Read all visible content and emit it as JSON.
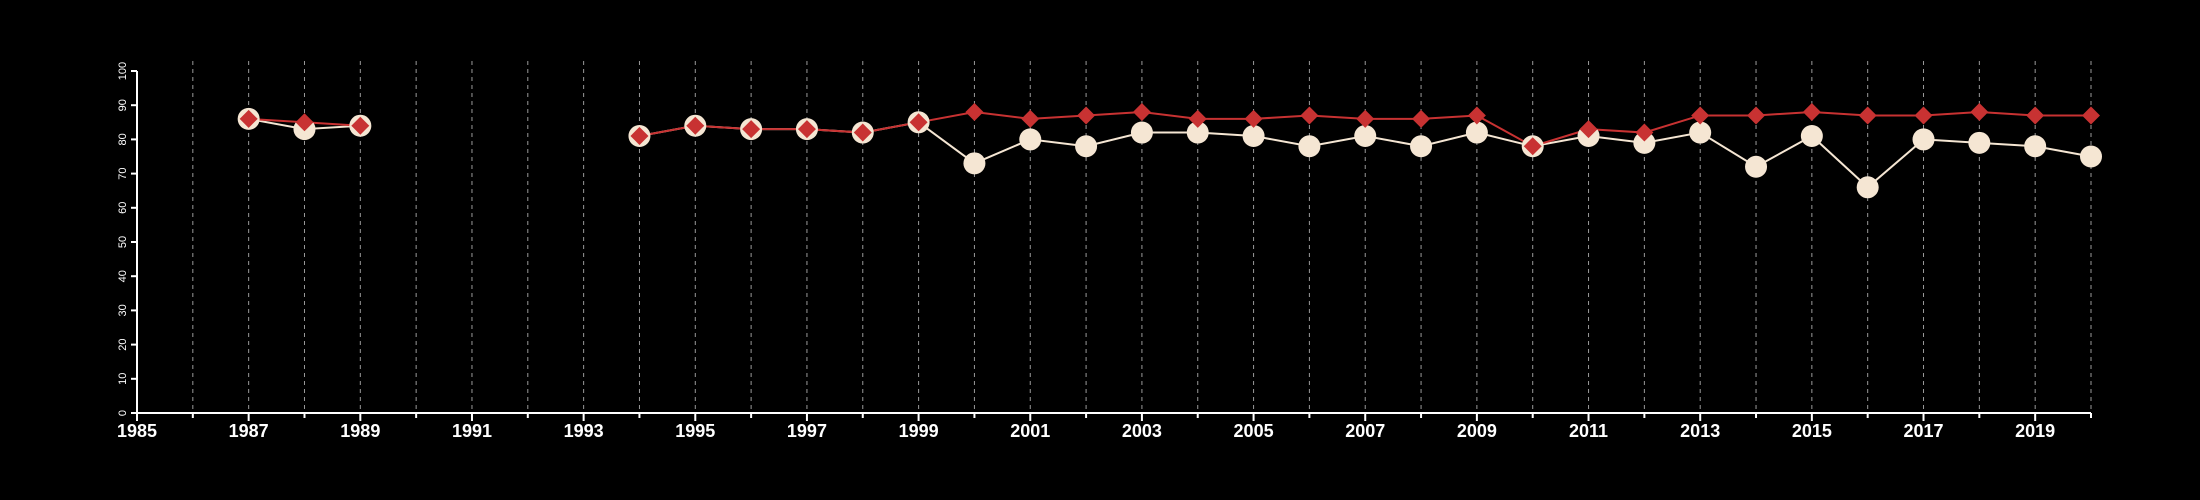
{
  "chart_data": {
    "type": "line",
    "title": "",
    "xlabel": "",
    "ylabel": "",
    "xlim": [
      1985,
      2020
    ],
    "ylim": [
      0,
      100
    ],
    "x_ticks": [
      1985,
      1987,
      1989,
      1991,
      1993,
      1995,
      1997,
      1999,
      2001,
      2003,
      2005,
      2007,
      2009,
      2011,
      2013,
      2015,
      2017,
      2019
    ],
    "y_ticks": [
      0,
      10,
      20,
      30,
      40,
      50,
      60,
      70,
      80,
      90,
      100
    ],
    "vertical_grid": "dashed, every year",
    "legend": "none",
    "series": [
      {
        "marker": "circle",
        "color": "#f5e6d3",
        "points": [
          [
            1987,
            86
          ],
          [
            1988,
            83
          ],
          [
            1989,
            84
          ],
          [
            1994,
            81
          ],
          [
            1995,
            84
          ],
          [
            1996,
            83
          ],
          [
            1997,
            83
          ],
          [
            1998,
            82
          ],
          [
            1999,
            85
          ],
          [
            2000,
            73
          ],
          [
            2001,
            80
          ],
          [
            2002,
            78
          ],
          [
            2003,
            82
          ],
          [
            2004,
            82
          ],
          [
            2005,
            81
          ],
          [
            2006,
            78
          ],
          [
            2007,
            81
          ],
          [
            2008,
            78
          ],
          [
            2009,
            82
          ],
          [
            2010,
            78
          ],
          [
            2011,
            81
          ],
          [
            2012,
            79
          ],
          [
            2013,
            82
          ],
          [
            2014,
            72
          ],
          [
            2015,
            81
          ],
          [
            2016,
            66
          ],
          [
            2017,
            80
          ],
          [
            2018,
            79
          ],
          [
            2019,
            78
          ],
          [
            2020,
            75
          ]
        ]
      },
      {
        "marker": "diamond",
        "color": "#c83232",
        "points": [
          [
            1987,
            86
          ],
          [
            1988,
            85
          ],
          [
            1989,
            84
          ],
          [
            1994,
            81
          ],
          [
            1995,
            84
          ],
          [
            1996,
            83
          ],
          [
            1997,
            83
          ],
          [
            1998,
            82
          ],
          [
            1999,
            85
          ],
          [
            2000,
            88
          ],
          [
            2001,
            86
          ],
          [
            2002,
            87
          ],
          [
            2003,
            88
          ],
          [
            2004,
            86
          ],
          [
            2005,
            86
          ],
          [
            2006,
            87
          ],
          [
            2007,
            86
          ],
          [
            2008,
            86
          ],
          [
            2009,
            87
          ],
          [
            2010,
            78
          ],
          [
            2011,
            83
          ],
          [
            2012,
            82
          ],
          [
            2013,
            87
          ],
          [
            2014,
            87
          ],
          [
            2015,
            88
          ],
          [
            2016,
            87
          ],
          [
            2017,
            87
          ],
          [
            2018,
            88
          ],
          [
            2019,
            87
          ],
          [
            2020,
            87
          ]
        ]
      }
    ]
  }
}
